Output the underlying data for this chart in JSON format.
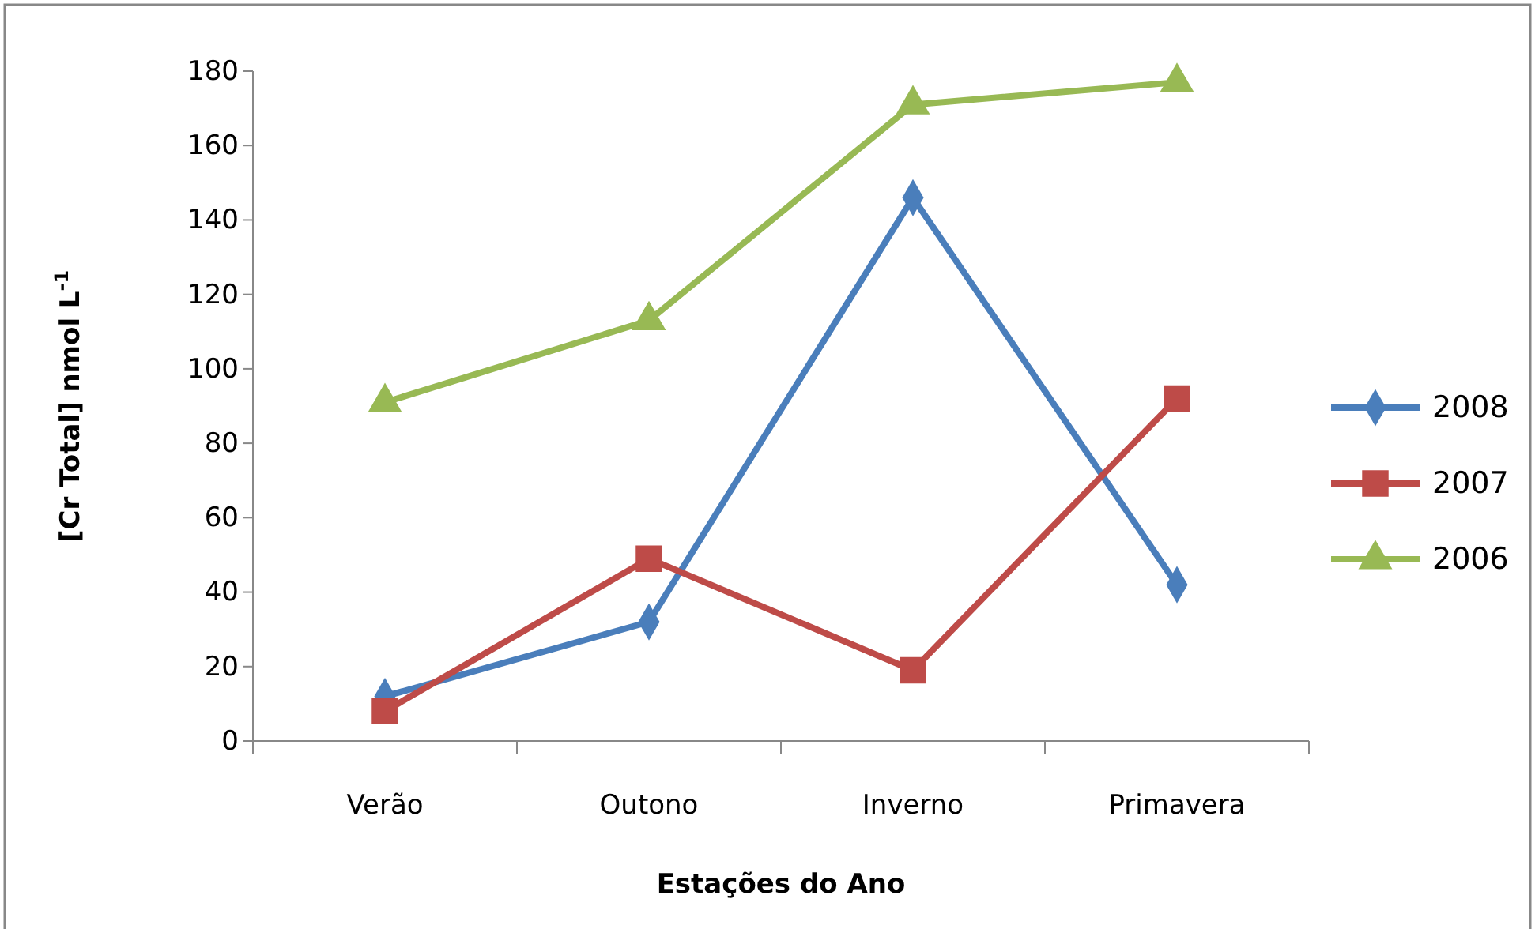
{
  "chart_data": {
    "type": "line",
    "xlabel": "Estações do Ano",
    "ylabel": "[Cr Total] nmol L$^{-1}$",
    "categories": [
      "Verão",
      "Outono",
      "Inverno",
      "Primavera"
    ],
    "ylim": [
      0,
      180
    ],
    "yticks": [
      0,
      20,
      40,
      60,
      80,
      100,
      120,
      140,
      160,
      180
    ],
    "grid": false,
    "legend": "right",
    "line_style": "solid",
    "series": [
      {
        "name": "2008",
        "color": "#4a7ebb",
        "marker": "diamond",
        "values": [
          12,
          32,
          146,
          42
        ]
      },
      {
        "name": "2007",
        "color": "#be4b48",
        "marker": "square",
        "values": [
          8,
          49,
          19,
          92
        ]
      },
      {
        "name": "2006",
        "color": "#98b954",
        "marker": "triangle",
        "values": [
          91,
          113,
          171,
          177
        ]
      }
    ]
  }
}
